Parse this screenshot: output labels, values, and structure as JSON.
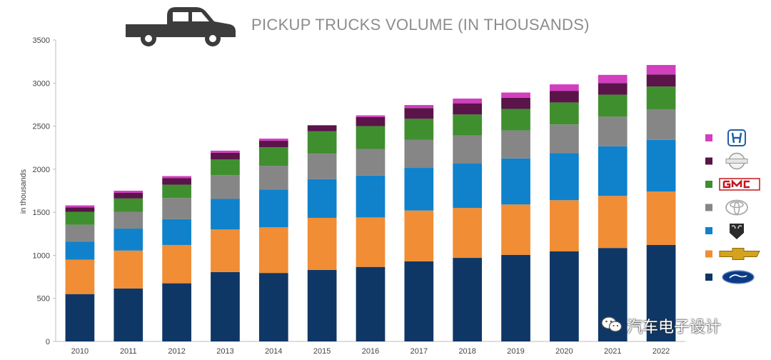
{
  "title": "PICKUP TRUCKS VOLUME (IN THOUSANDS)",
  "watermark_text": "汽车电子设计",
  "colors": {
    "ford": "#0f3766",
    "chevrolet": "#f08d35",
    "ram": "#0f82cb",
    "toyota": "#868686",
    "gmc": "#3f8f2f",
    "nissan": "#5a1449",
    "honda": "#d23fbf",
    "axis": "#bdbdbd",
    "text": "#444444"
  },
  "legend": [
    {
      "brand": "Honda",
      "logo": "honda-logo",
      "color_key": "honda"
    },
    {
      "brand": "Nissan",
      "logo": "nissan-logo",
      "color_key": "nissan"
    },
    {
      "brand": "GMC",
      "logo": "gmc-logo",
      "color_key": "gmc"
    },
    {
      "brand": "Toyota",
      "logo": "toyota-logo",
      "color_key": "toyota"
    },
    {
      "brand": "Ram",
      "logo": "ram-logo",
      "color_key": "ram"
    },
    {
      "brand": "Chevrolet",
      "logo": "chevrolet-logo",
      "color_key": "chevrolet"
    },
    {
      "brand": "Ford",
      "logo": "ford-logo",
      "color_key": "ford"
    }
  ],
  "chart_data": {
    "type": "bar",
    "stacked": true,
    "title": "PICKUP TRUCKS VOLUME (IN THOUSANDS)",
    "xlabel": "",
    "ylabel": "in thousands",
    "ylim": [
      0,
      3500
    ],
    "yticks": [
      0,
      500,
      1000,
      1500,
      2000,
      2500,
      3000,
      3500
    ],
    "grid": false,
    "legend_position": "right",
    "categories": [
      "2010",
      "2011",
      "2012",
      "2013",
      "2014",
      "2015",
      "2016",
      "2017",
      "2018",
      "2019",
      "2020",
      "2021",
      "2022"
    ],
    "series": [
      {
        "name": "Ford",
        "color_key": "ford",
        "values": [
          550,
          615,
          675,
          805,
          795,
          830,
          865,
          930,
          970,
          1005,
          1045,
          1085,
          1120
        ]
      },
      {
        "name": "Chevrolet",
        "color_key": "chevrolet",
        "values": [
          400,
          440,
          445,
          495,
          530,
          605,
          575,
          590,
          580,
          585,
          595,
          605,
          620
        ]
      },
      {
        "name": "Ram",
        "color_key": "ram",
        "values": [
          210,
          255,
          300,
          355,
          440,
          450,
          485,
          495,
          515,
          535,
          545,
          575,
          600
        ]
      },
      {
        "name": "Toyota",
        "color_key": "toyota",
        "values": [
          195,
          195,
          245,
          275,
          275,
          295,
          310,
          325,
          325,
          325,
          335,
          345,
          355
        ]
      },
      {
        "name": "GMC",
        "color_key": "gmc",
        "values": [
          150,
          155,
          155,
          185,
          215,
          260,
          265,
          245,
          245,
          250,
          255,
          255,
          265
        ]
      },
      {
        "name": "Nissan",
        "color_key": "nissan",
        "values": [
          50,
          65,
          75,
          75,
          75,
          70,
          105,
          125,
          130,
          130,
          135,
          135,
          140
        ]
      },
      {
        "name": "Honda",
        "color_key": "honda",
        "values": [
          25,
          25,
          25,
          25,
          25,
          0,
          20,
          35,
          55,
          60,
          75,
          95,
          110
        ]
      }
    ]
  }
}
